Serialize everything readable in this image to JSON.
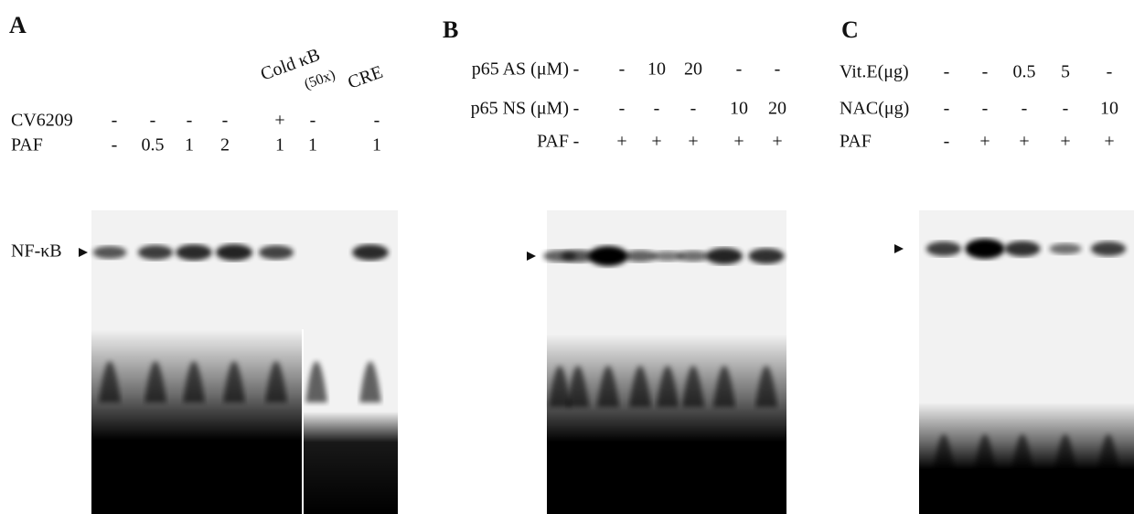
{
  "panels": [
    {
      "label": "A",
      "band_label": "NF-κB",
      "column_headers": [
        "Cold κB",
        "(50x)",
        "CRE"
      ],
      "rows": [
        {
          "name": "CV6209",
          "values": [
            "-",
            "-",
            "-",
            "-",
            "+",
            "-",
            "-"
          ]
        },
        {
          "name": "PAF",
          "values": [
            "-",
            "0.5",
            "1",
            "2",
            "1",
            "1",
            "1"
          ]
        }
      ]
    },
    {
      "label": "B",
      "rows": [
        {
          "name": "p65 AS (μM)",
          "values": [
            "-",
            "-",
            "10",
            "20",
            "-",
            "-"
          ]
        },
        {
          "name": "p65 NS (μM)",
          "values": [
            "-",
            "-",
            "-",
            "-",
            "10",
            "20"
          ]
        },
        {
          "name": "PAF",
          "values": [
            "-",
            "+",
            "+",
            "+",
            "+",
            "+"
          ]
        }
      ]
    },
    {
      "label": "C",
      "rows": [
        {
          "name": "Vit.E(μg)",
          "values": [
            "-",
            "-",
            "0.5",
            "5",
            "-"
          ]
        },
        {
          "name": "NAC(μg)",
          "values": [
            "-",
            "-",
            "-",
            "-",
            "10"
          ]
        },
        {
          "name": "PAF",
          "values": [
            "-",
            "+",
            "+",
            "+",
            "+"
          ]
        }
      ]
    }
  ]
}
